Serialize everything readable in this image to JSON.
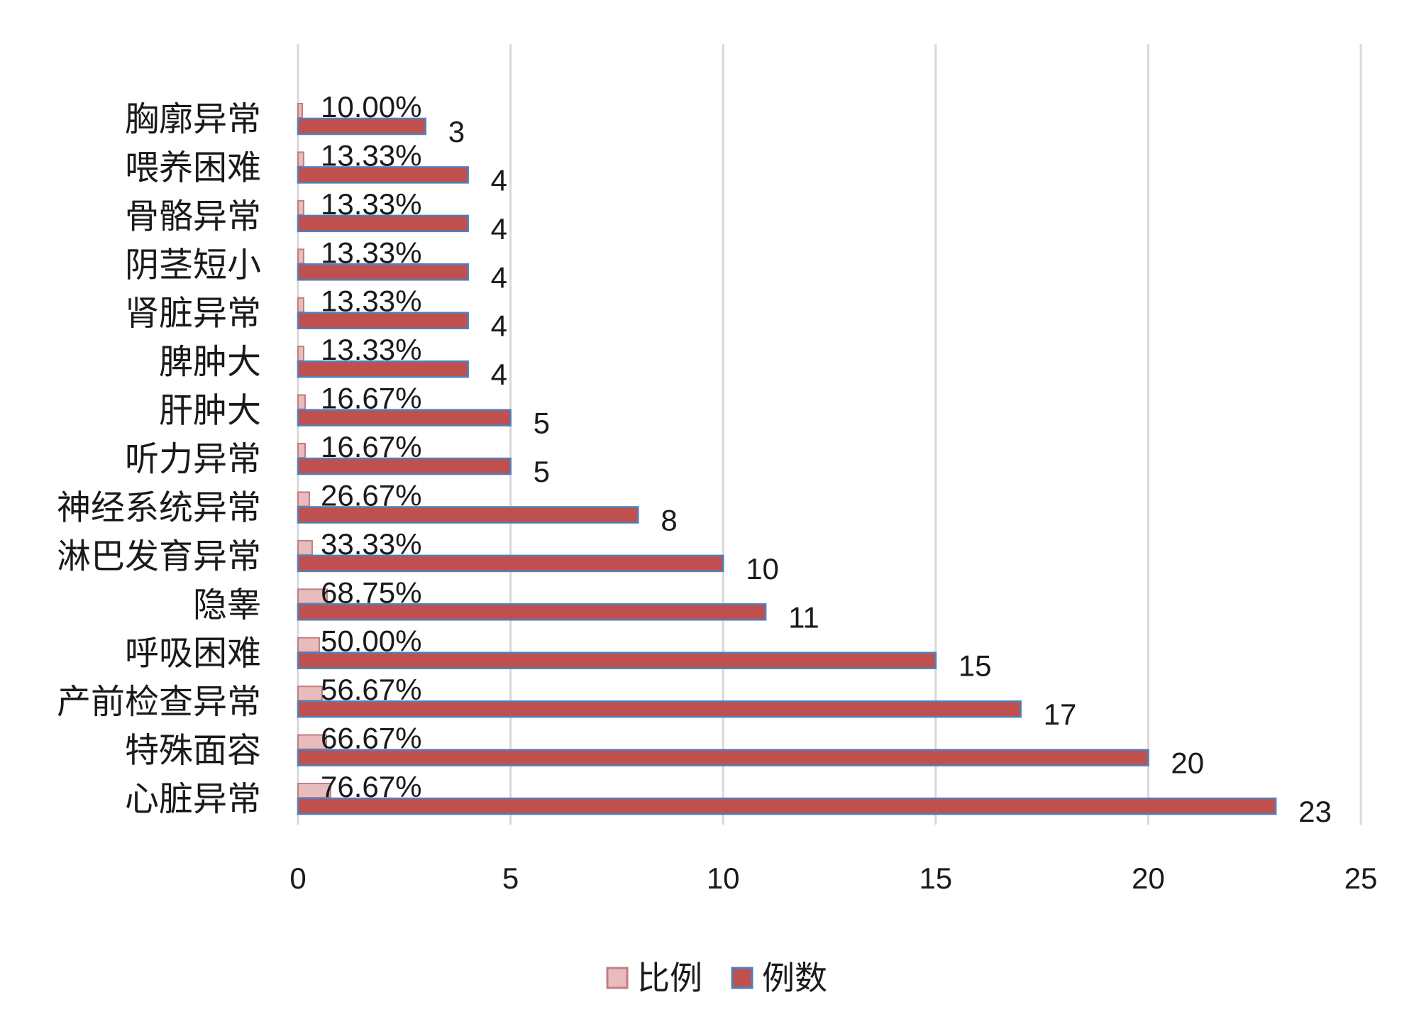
{
  "chart_data": {
    "type": "bar",
    "orientation": "horizontal",
    "categories": [
      "胸廓异常",
      "喂养困难",
      "骨骼异常",
      "阴茎短小",
      "肾脏异常",
      "脾肿大",
      "肝肿大",
      "听力异常",
      "神经系统异常",
      "淋巴发育异常",
      "隐睾",
      "呼吸困难",
      "产前检查异常",
      "特殊面容",
      "心脏异常"
    ],
    "series": [
      {
        "name": "比例",
        "values": [
          0.1,
          0.1333,
          0.1333,
          0.1333,
          0.1333,
          0.1333,
          0.1667,
          0.1667,
          0.2667,
          0.3333,
          0.6875,
          0.5,
          0.5667,
          0.6667,
          0.7667
        ],
        "labels": [
          "10.00%",
          "13.33%",
          "13.33%",
          "13.33%",
          "13.33%",
          "13.33%",
          "16.67%",
          "16.67%",
          "26.67%",
          "33.33%",
          "68.75%",
          "50.00%",
          "56.67%",
          "66.67%",
          "76.67%"
        ],
        "color": "#e8bcbd",
        "border": "#c07f81"
      },
      {
        "name": "例数",
        "values": [
          3,
          4,
          4,
          4,
          4,
          4,
          5,
          5,
          8,
          10,
          11,
          15,
          17,
          20,
          23
        ],
        "labels": [
          "3",
          "4",
          "4",
          "4",
          "4",
          "4",
          "5",
          "5",
          "8",
          "10",
          "11",
          "15",
          "17",
          "20",
          "23"
        ],
        "color": "#c0504d",
        "border": "#4f81bd"
      }
    ],
    "x_ticks": [
      "0",
      "5",
      "10",
      "15",
      "20",
      "25"
    ],
    "xlim": [
      0,
      25
    ],
    "grid": true,
    "legend_position": "bottom"
  }
}
